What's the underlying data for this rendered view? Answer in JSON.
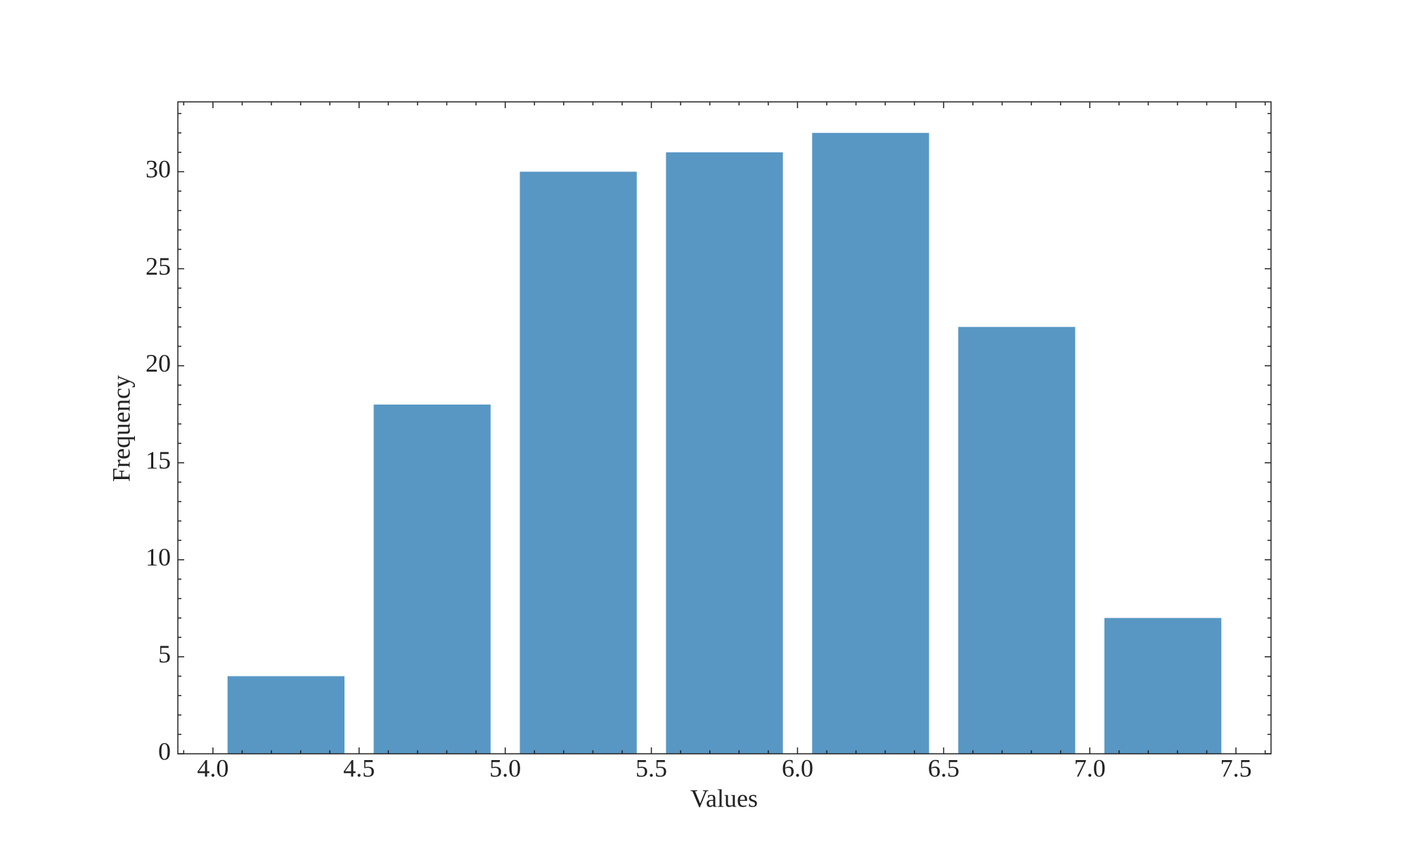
{
  "chart_data": {
    "type": "histogram",
    "xlabel": "Values",
    "ylabel": "Frequency",
    "bins": [
      4.0,
      4.5,
      5.0,
      5.5,
      6.0,
      6.5,
      7.0,
      7.5
    ],
    "values": [
      4,
      18,
      30,
      31,
      32,
      22,
      7
    ],
    "color": "#5897c4",
    "rwidth": 0.8,
    "xlim": [
      3.88,
      7.62
    ],
    "ylim": [
      0,
      33.6
    ],
    "xticks": [
      {
        "value": 4.0,
        "label": "4.0"
      },
      {
        "value": 4.5,
        "label": "4.5"
      },
      {
        "value": 5.0,
        "label": "5.0"
      },
      {
        "value": 5.5,
        "label": "5.5"
      },
      {
        "value": 6.0,
        "label": "6.0"
      },
      {
        "value": 6.5,
        "label": "6.5"
      },
      {
        "value": 7.0,
        "label": "7.0"
      },
      {
        "value": 7.5,
        "label": "7.5"
      }
    ],
    "yticks": [
      0,
      5,
      10,
      15,
      20,
      25,
      30
    ],
    "xminorticks": [
      3.9,
      4.1,
      4.2,
      4.3,
      4.4,
      4.6,
      4.7,
      4.8,
      4.9,
      5.1,
      5.2,
      5.3,
      5.4,
      5.6,
      5.7,
      5.8,
      5.9,
      6.1,
      6.2,
      6.3,
      6.4,
      6.6,
      6.7,
      6.8,
      6.9,
      7.1,
      7.2,
      7.3,
      7.4,
      7.6
    ],
    "yminorticks": [
      1,
      2,
      3,
      4,
      6,
      7,
      8,
      9,
      11,
      12,
      13,
      14,
      16,
      17,
      18,
      19,
      21,
      22,
      23,
      24,
      26,
      27,
      28,
      29,
      31,
      32,
      33
    ],
    "ticks_direction": "in",
    "grid": false
  }
}
